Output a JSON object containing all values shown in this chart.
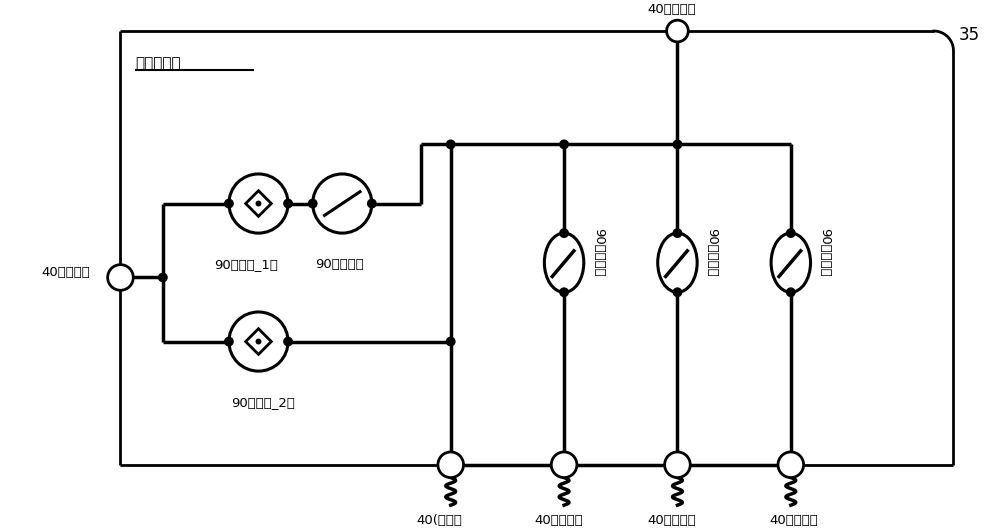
{
  "bg_color": "#ffffff",
  "line_color": "#000000",
  "title_35": "35",
  "label_router": "气体路由器",
  "label_40_cycle": "40（循环）",
  "label_40_flush": "40(冲刷）",
  "label_40_carry": "40（携带）",
  "label_40_fuel": "40（燃料）",
  "label_40_process": "40（工艺）",
  "label_40_outward": "40（向外）",
  "label_90_detect1": "90（检测_1）",
  "label_90_cycle": "90（循环）",
  "label_90_detect2": "90（检测_2）",
  "label_90_carry": "90（携带）",
  "label_90_fuel": "90（燃料）",
  "label_90_process": "90（工艺）",
  "figsize": [
    10.0,
    5.29
  ],
  "dpi": 100
}
